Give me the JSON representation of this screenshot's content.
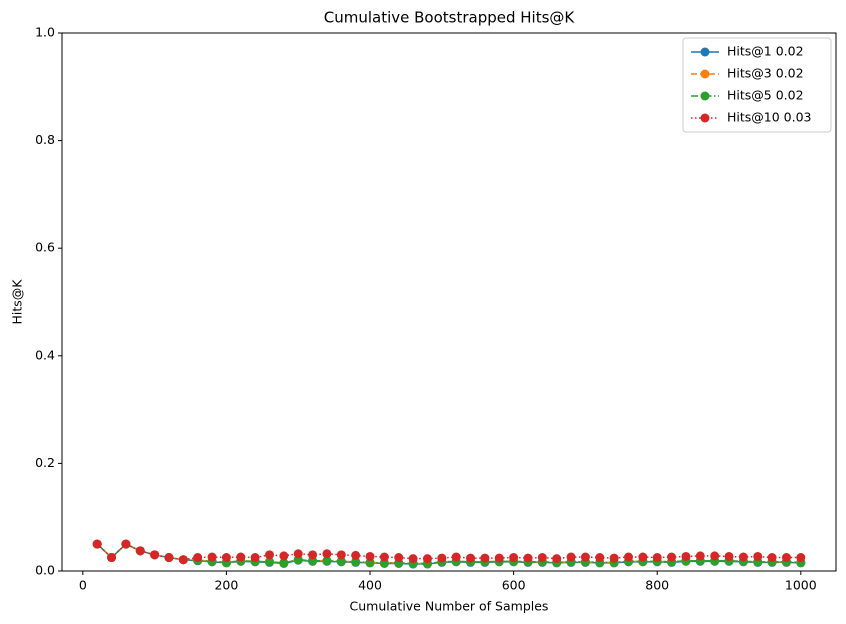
{
  "chart_data": {
    "type": "line",
    "title": "Cumulative Bootstrapped Hits@K",
    "x_label": "Cumulative Number of Samples",
    "y_label": "Hits@K",
    "x": [
      20,
      40,
      60,
      80,
      100,
      120,
      140,
      160,
      180,
      200,
      220,
      240,
      260,
      280,
      300,
      320,
      340,
      360,
      380,
      400,
      420,
      440,
      460,
      480,
      500,
      520,
      540,
      560,
      580,
      600,
      620,
      640,
      660,
      680,
      700,
      720,
      740,
      760,
      780,
      800,
      820,
      840,
      860,
      880,
      900,
      920,
      940,
      960,
      980,
      1000
    ],
    "xlim": [
      -29,
      1049
    ],
    "xticks": [
      0,
      200,
      400,
      600,
      800,
      1000
    ],
    "ylim": [
      0,
      1
    ],
    "yticks": [
      {
        "value": 0,
        "label": "0.0"
      },
      {
        "value": 0.2,
        "label": "0.2"
      },
      {
        "value": 0.4,
        "label": "0.4"
      },
      {
        "value": 0.6,
        "label": "0.6"
      },
      {
        "value": 0.8,
        "label": "0.8"
      },
      {
        "value": 1,
        "label": "1.0"
      }
    ],
    "legend": "upper right",
    "series": [
      {
        "name": "Hits@1 0.02",
        "color": "#1f77b4",
        "linestyle": "solid",
        "values": [
          0.05,
          0.025,
          0.05,
          0.0375,
          0.03,
          0.025,
          0.021,
          0.019,
          0.017,
          0.015,
          0.018,
          0.017,
          0.016,
          0.014,
          0.02,
          0.018,
          0.018,
          0.017,
          0.016,
          0.015,
          0.014,
          0.014,
          0.013,
          0.013,
          0.016,
          0.017,
          0.016,
          0.016,
          0.017,
          0.017,
          0.016,
          0.016,
          0.015,
          0.016,
          0.016,
          0.015,
          0.015,
          0.017,
          0.017,
          0.017,
          0.016,
          0.018,
          0.018,
          0.018,
          0.018,
          0.017,
          0.016,
          0.016,
          0.016,
          0.015
        ]
      },
      {
        "name": "Hits@3 0.02",
        "color": "#ff7f0e",
        "linestyle": "dashed",
        "values": [
          0.05,
          0.025,
          0.05,
          0.0375,
          0.03,
          0.025,
          0.021,
          0.02,
          0.018,
          0.016,
          0.019,
          0.018,
          0.017,
          0.015,
          0.021,
          0.019,
          0.019,
          0.018,
          0.017,
          0.016,
          0.015,
          0.015,
          0.014,
          0.014,
          0.017,
          0.018,
          0.017,
          0.017,
          0.018,
          0.018,
          0.017,
          0.017,
          0.016,
          0.017,
          0.017,
          0.016,
          0.016,
          0.018,
          0.018,
          0.018,
          0.017,
          0.019,
          0.019,
          0.019,
          0.019,
          0.018,
          0.017,
          0.017,
          0.017,
          0.016
        ]
      },
      {
        "name": "Hits@5 0.02",
        "color": "#2ca02c",
        "linestyle": "dashdot",
        "values": [
          0.05,
          0.025,
          0.05,
          0.0375,
          0.03,
          0.025,
          0.021,
          0.02,
          0.018,
          0.016,
          0.019,
          0.018,
          0.017,
          0.015,
          0.021,
          0.019,
          0.019,
          0.018,
          0.017,
          0.016,
          0.015,
          0.015,
          0.014,
          0.014,
          0.017,
          0.018,
          0.017,
          0.017,
          0.018,
          0.018,
          0.017,
          0.017,
          0.016,
          0.017,
          0.017,
          0.016,
          0.016,
          0.018,
          0.018,
          0.018,
          0.017,
          0.019,
          0.019,
          0.019,
          0.019,
          0.018,
          0.017,
          0.017,
          0.017,
          0.016
        ]
      },
      {
        "name": "Hits@10 0.03",
        "color": "#d62728",
        "linestyle": "dotted",
        "values": [
          0.05,
          0.025,
          0.05,
          0.0375,
          0.03,
          0.025,
          0.021,
          0.025,
          0.026,
          0.025,
          0.026,
          0.025,
          0.03,
          0.028,
          0.032,
          0.03,
          0.032,
          0.03,
          0.029,
          0.027,
          0.026,
          0.025,
          0.023,
          0.023,
          0.024,
          0.026,
          0.024,
          0.024,
          0.024,
          0.025,
          0.024,
          0.025,
          0.023,
          0.026,
          0.026,
          0.025,
          0.024,
          0.026,
          0.026,
          0.025,
          0.026,
          0.027,
          0.028,
          0.028,
          0.027,
          0.026,
          0.027,
          0.025,
          0.025,
          0.025
        ]
      }
    ]
  }
}
